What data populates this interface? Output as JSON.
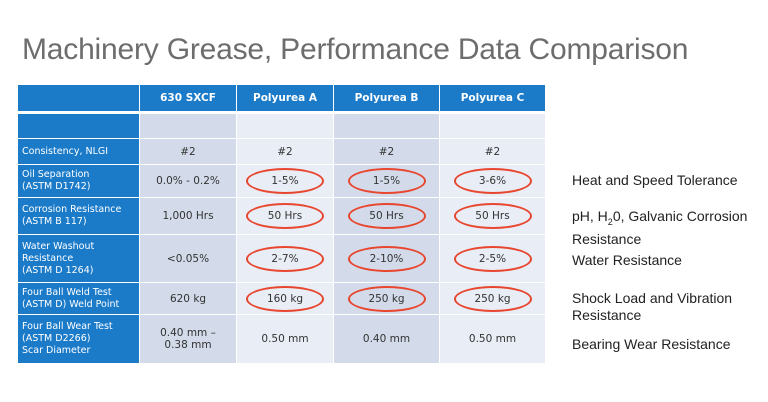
{
  "title": "Machinery Grease, Performance Data Comparison",
  "table": {
    "columns": [
      "",
      "630 SXCF",
      "Polyurea A",
      "Polyurea B",
      "Polyurea C"
    ],
    "rows": [
      {
        "label": "",
        "values": [
          "",
          "",
          "",
          ""
        ],
        "circled": [
          false,
          false,
          false,
          false
        ]
      },
      {
        "label": "Consistency, NLGI",
        "values": [
          "#2",
          "#2",
          "#2",
          "#2"
        ],
        "circled": [
          false,
          false,
          false,
          false
        ]
      },
      {
        "label": "Oil Separation\n(ASTM D1742)",
        "values": [
          "0.0% - 0.2%",
          "1-5%",
          "1-5%",
          "3-6%"
        ],
        "circled": [
          false,
          true,
          true,
          true
        ]
      },
      {
        "label": "Corrosion  Resistance\n(ASTM B 117)",
        "values": [
          "1,000 Hrs",
          "50 Hrs",
          "50 Hrs",
          "50 Hrs"
        ],
        "circled": [
          false,
          true,
          true,
          true
        ]
      },
      {
        "label": "Water Washout\nResistance\n(ASTM D 1264)",
        "values": [
          "<0.05%",
          "2-7%",
          "2-10%",
          "2-5%"
        ],
        "circled": [
          false,
          true,
          true,
          true
        ]
      },
      {
        "label": "Four Ball Weld Test\n(ASTM D) Weld Point",
        "values": [
          "620 kg",
          "160 kg",
          "250 kg",
          "250 kg"
        ],
        "circled": [
          false,
          true,
          true,
          true
        ]
      },
      {
        "label": "Four Ball Wear Test\n(ASTM D2266)\nScar Diameter",
        "values": [
          "0.40 mm –\n0.38 mm",
          "0.50 mm",
          "0.40 mm",
          "0.50 mm"
        ],
        "circled": [
          false,
          false,
          false,
          false
        ]
      }
    ]
  },
  "notes": {
    "heat": "Heat and Speed Tolerance",
    "ph_prefix": "pH, H",
    "ph_sub": "2",
    "ph_suffix": "0, Galvanic Corrosion",
    "ph_line2": "Resistance",
    "water": "Water Resistance",
    "shock_line1": "Shock Load and Vibration",
    "shock_line2": "Resistance",
    "bearing": "Bearing Wear Resistance"
  },
  "colors": {
    "header": "#1b7bc9",
    "circle": "#e8462f",
    "title": "#6d6d6d"
  }
}
